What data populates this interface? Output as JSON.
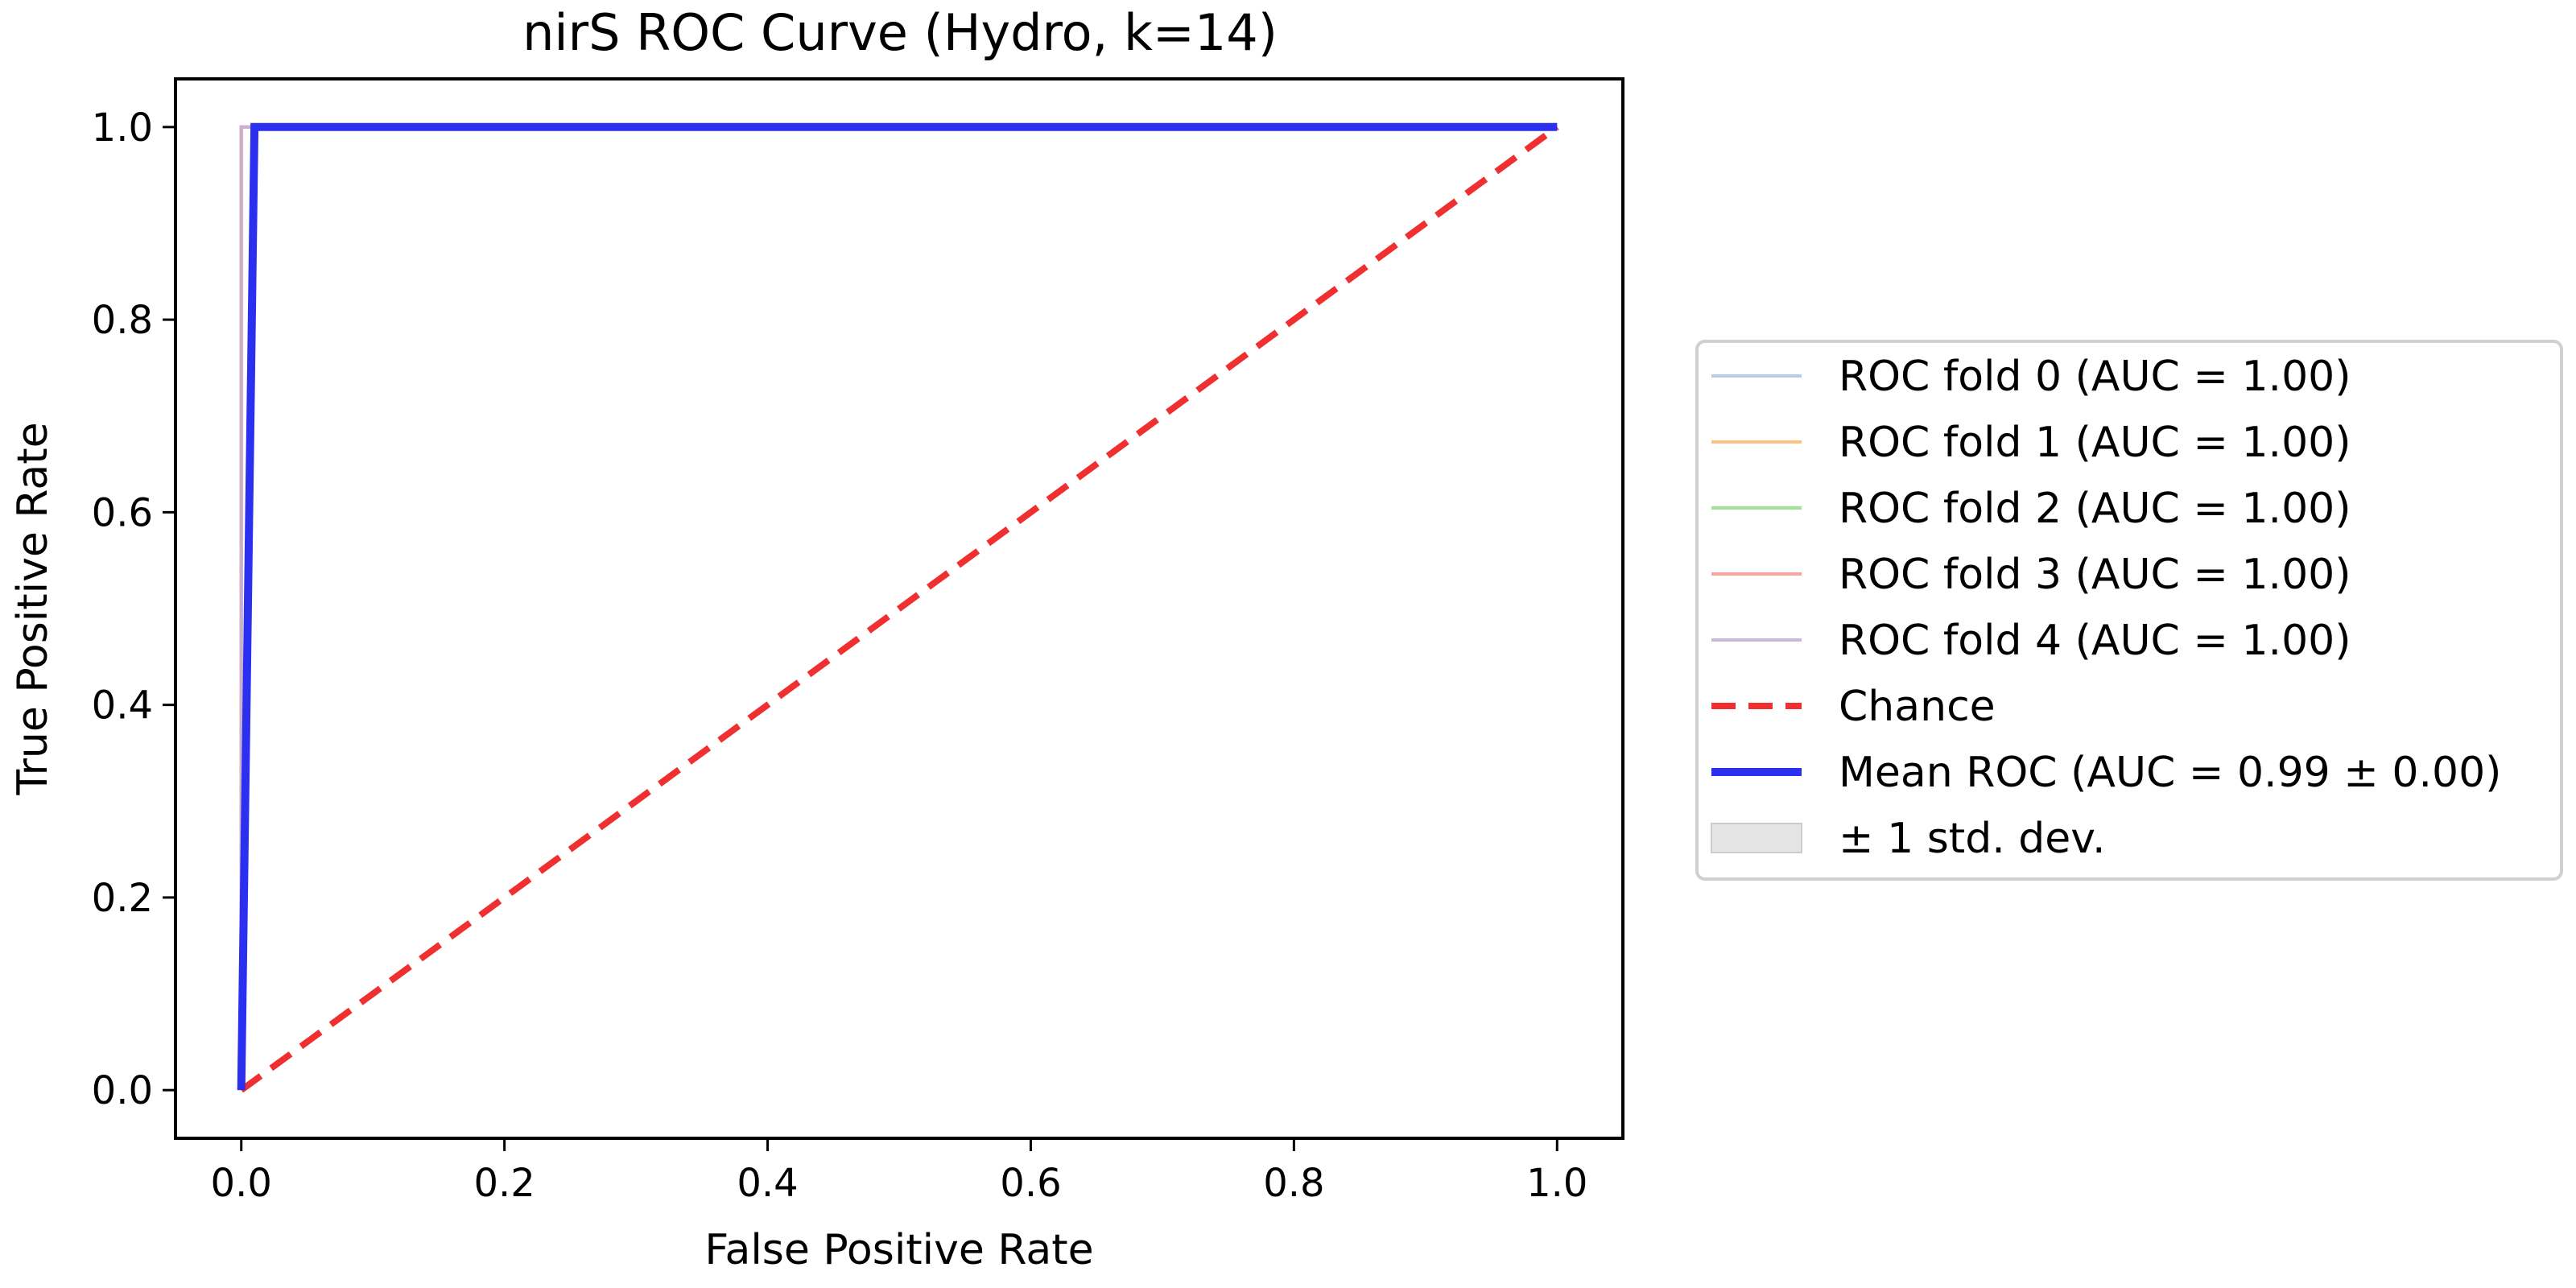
{
  "chart_data": {
    "type": "line",
    "title": "nirS ROC Curve (Hydro, k=14)",
    "xlabel": "False Positive Rate",
    "ylabel": "True Positive Rate",
    "xlim": [
      -0.05,
      1.05
    ],
    "ylim": [
      -0.05,
      1.05
    ],
    "xticks": [
      0.0,
      0.2,
      0.4,
      0.6,
      0.8,
      1.0
    ],
    "yticks": [
      0.0,
      0.2,
      0.4,
      0.6,
      0.8,
      1.0
    ],
    "xtick_labels": [
      "0.0",
      "0.2",
      "0.4",
      "0.6",
      "0.8",
      "1.0"
    ],
    "ytick_labels": [
      "0.0",
      "0.2",
      "0.4",
      "0.6",
      "0.8",
      "1.0"
    ],
    "grid": false,
    "legend_placement": "outside-right",
    "series": [
      {
        "name": "ROC fold 0 (AUC = 1.00)",
        "color": "#aec7e8",
        "x": [
          0,
          0,
          1
        ],
        "y": [
          0,
          1,
          1
        ]
      },
      {
        "name": "ROC fold 1 (AUC = 1.00)",
        "color": "#ffbb78",
        "x": [
          0,
          0,
          1
        ],
        "y": [
          0,
          1,
          1
        ]
      },
      {
        "name": "ROC fold 2 (AUC = 1.00)",
        "color": "#98df8a",
        "x": [
          0,
          0,
          1
        ],
        "y": [
          0,
          1,
          1
        ]
      },
      {
        "name": "ROC fold 3 (AUC = 1.00)",
        "color": "#ff9896",
        "x": [
          0,
          0,
          1
        ],
        "y": [
          0,
          1,
          1
        ]
      },
      {
        "name": "ROC fold 4 (AUC = 1.00)",
        "color": "#c5b0d5",
        "x": [
          0,
          0,
          1
        ],
        "y": [
          0,
          1,
          1
        ]
      },
      {
        "name": "Chance",
        "color": "#f03030",
        "style": "dashed",
        "x": [
          0,
          1
        ],
        "y": [
          0,
          1
        ]
      },
      {
        "name": "Mean ROC (AUC = 0.99 ± 0.00)",
        "color": "#2a2ff0",
        "x": [
          0,
          0.01,
          1
        ],
        "y": [
          0,
          1,
          1
        ]
      }
    ],
    "std_band": {
      "name": "± 1 std. dev.",
      "color": "#e5e5e5"
    }
  }
}
